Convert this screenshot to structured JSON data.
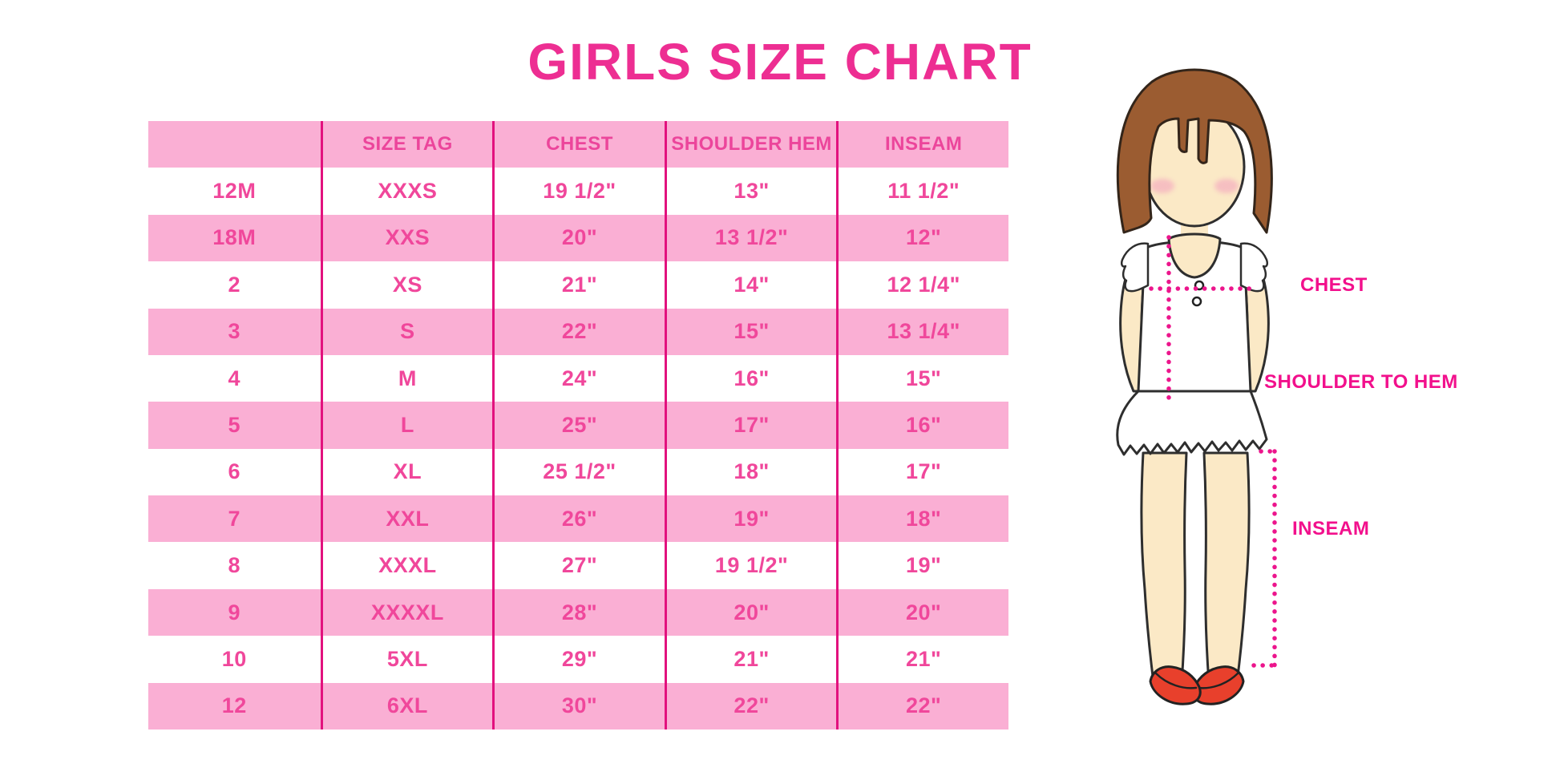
{
  "page": {
    "title": "GIRLS SIZE CHART"
  },
  "chart_data": {
    "type": "table",
    "title": "GIRLS SIZE CHART",
    "columns": [
      "",
      "SIZE TAG",
      "CHEST",
      "SHOULDER HEM",
      "INSEAM"
    ],
    "rows": [
      [
        "12M",
        "XXXS",
        "19 1/2\"",
        "13\"",
        "11 1/2\""
      ],
      [
        "18M",
        "XXS",
        "20\"",
        "13 1/2\"",
        "12\""
      ],
      [
        "2",
        "XS",
        "21\"",
        "14\"",
        "12 1/4\""
      ],
      [
        "3",
        "S",
        "22\"",
        "15\"",
        "13 1/4\""
      ],
      [
        "4",
        "M",
        "24\"",
        "16\"",
        "15\""
      ],
      [
        "5",
        "L",
        "25\"",
        "17\"",
        "16\""
      ],
      [
        "6",
        "XL",
        "25 1/2\"",
        "18\"",
        "17\""
      ],
      [
        "7",
        "XXL",
        "26\"",
        "19\"",
        "18\""
      ],
      [
        "8",
        "XXXL",
        "27\"",
        "19 1/2\"",
        "19\""
      ],
      [
        "9",
        "XXXXL",
        "28\"",
        "20\"",
        "20\""
      ],
      [
        "10",
        "5XL",
        "29\"",
        "21\"",
        "21\""
      ],
      [
        "12",
        "6XL",
        "30\"",
        "22\"",
        "22\""
      ]
    ],
    "layout_hints": {
      "striping": "header pink, then alternating white/pink starting with white",
      "column_dividers": "vertical magenta lines between all 5 columns, no horizontal borders"
    }
  },
  "diagram": {
    "figure": "toddler-girl-illustration",
    "labels": {
      "chest": "CHEST",
      "shoulder_to_hem": "SHOULDER TO HEM",
      "inseam": "INSEAM"
    }
  },
  "colors": {
    "title_pink": "#ed2e92",
    "table_text_pink": "#f0479b",
    "stripe_pink": "#faafd4",
    "divider_magenta": "#e2117e",
    "label_magenta": "#f2108c",
    "dotted_line_magenta": "#ec158c",
    "hair_brown": "#9b5c31",
    "skin_tone": "#fbe9c6",
    "shoe_red": "#e8402c"
  }
}
